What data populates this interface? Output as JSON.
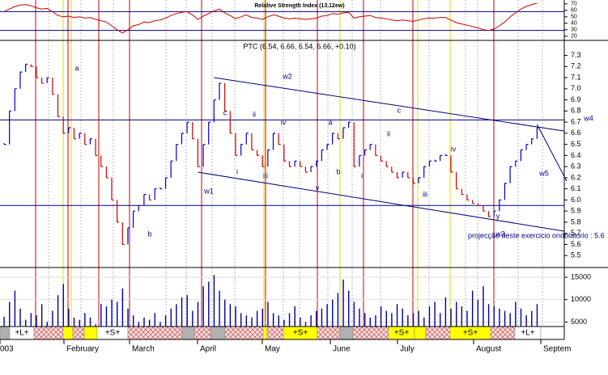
{
  "chart_data": [
    {
      "type": "line",
      "title": "Relative Strength Index (13.12ew)",
      "color": "#cc0000",
      "values": [
        58,
        62,
        66,
        68,
        69,
        67,
        64,
        62,
        63,
        58,
        52,
        50,
        51,
        49,
        50,
        48,
        49,
        46,
        44,
        42,
        36,
        30,
        25,
        30,
        36,
        38,
        42,
        41,
        44,
        45,
        48,
        52,
        55,
        57,
        58,
        53,
        46,
        51,
        55,
        59,
        62,
        56,
        52,
        47,
        50,
        53,
        49,
        48,
        46,
        50,
        53,
        51,
        48,
        47,
        48,
        47,
        46,
        47,
        48,
        51,
        52,
        55,
        54,
        56,
        57,
        48,
        50,
        51,
        52,
        49,
        48,
        47,
        45,
        44,
        45,
        44,
        43,
        45,
        47,
        48,
        48,
        49,
        49,
        45,
        41,
        39,
        37,
        35,
        33,
        30,
        29,
        31,
        36,
        42,
        50,
        56,
        62,
        66,
        69,
        71
      ],
      "ylim": [
        16,
        76
      ],
      "yticks": [
        70,
        60,
        50,
        40,
        30,
        20
      ],
      "hlines": [
        58,
        29
      ],
      "hline_color": "#000080"
    },
    {
      "type": "ohlc",
      "title": "PTC (6.54, 6.66, 6.54, 6.66, +0.10)",
      "up_color": "#0000cc",
      "down_color": "#cc0000",
      "values": [
        6.5,
        6.8,
        7.0,
        7.15,
        7.22,
        7.2,
        7.1,
        7.05,
        7.1,
        6.95,
        6.75,
        6.6,
        6.65,
        6.55,
        6.6,
        6.5,
        6.55,
        6.4,
        6.3,
        6.2,
        6.0,
        5.8,
        5.6,
        5.75,
        5.9,
        5.95,
        6.05,
        6.0,
        6.1,
        6.1,
        6.2,
        6.35,
        6.5,
        6.6,
        6.7,
        6.55,
        6.3,
        6.5,
        6.7,
        6.9,
        7.05,
        6.8,
        6.6,
        6.4,
        6.5,
        6.6,
        6.45,
        6.4,
        6.3,
        6.45,
        6.6,
        6.5,
        6.35,
        6.3,
        6.35,
        6.3,
        6.25,
        6.3,
        6.35,
        6.45,
        6.5,
        6.6,
        6.55,
        6.65,
        6.7,
        6.3,
        6.4,
        6.45,
        6.5,
        6.4,
        6.35,
        6.3,
        6.25,
        6.2,
        6.25,
        6.2,
        6.15,
        6.2,
        6.3,
        6.35,
        6.35,
        6.4,
        6.4,
        6.25,
        6.1,
        6.05,
        6.0,
        5.97,
        5.95,
        5.9,
        5.85,
        5.9,
        6.0,
        6.15,
        6.3,
        6.35,
        6.45,
        6.5,
        6.55,
        6.65
      ],
      "ylim": [
        5.4,
        7.42
      ],
      "yticks": [
        7.3,
        7.2,
        7.1,
        {
          "value": 7,
          "label": "7.0"
        },
        6.9,
        6.8,
        6.7,
        6.6,
        6.5,
        6.4,
        6.3,
        6.2,
        6.1,
        {
          "value": 6,
          "label": "6.0"
        },
        5.9,
        5.8,
        5.7,
        5.6,
        5.5
      ],
      "hlines": [
        6.72,
        5.95
      ],
      "line_color": "#000080",
      "trendlines": [
        {
          "from": [
            39,
            7.1
          ],
          "to": [
            104,
            6.62
          ]
        },
        {
          "from": [
            36,
            6.25
          ],
          "to": [
            104,
            5.72
          ]
        },
        {
          "from": [
            99,
            6.68
          ],
          "to": [
            104.5,
            6.17
          ]
        }
      ],
      "annotations": [
        "a",
        "b",
        "c",
        "w1",
        "w2",
        "i",
        "ii",
        "iii",
        "iv",
        "v",
        "a",
        "b",
        "c",
        "i",
        "ii",
        "iii",
        "iv",
        "y",
        "w3",
        "w4",
        "w5"
      ],
      "note": "projecção deste exercicio ondolatorio : 5.6"
    },
    {
      "type": "bar",
      "color": "#000099",
      "values": [
        6200,
        9500,
        12000,
        8000,
        5500,
        7000,
        6500,
        9000,
        5000,
        7500,
        11000,
        13500,
        8000,
        6000,
        5500,
        7000,
        6000,
        4500,
        9000,
        8500,
        10000,
        9500,
        12500,
        8000,
        6500,
        5000,
        6000,
        5500,
        7000,
        5000,
        6500,
        8000,
        9000,
        10500,
        11000,
        7500,
        9500,
        13000,
        14000,
        15500,
        12000,
        10000,
        9000,
        8500,
        7000,
        6500,
        6000,
        7500,
        8000,
        9500,
        7000,
        6500,
        5500,
        7000,
        8500,
        6000,
        5000,
        6500,
        7500,
        8000,
        9000,
        10000,
        11500,
        14500,
        12000,
        9500,
        8000,
        7000,
        6000,
        6500,
        8500,
        7500,
        7000,
        9000,
        8000,
        6500,
        7000,
        7500,
        6000,
        8500,
        9500,
        7000,
        10500,
        8000,
        9500,
        8500,
        7500,
        12000,
        10000,
        13000,
        9000,
        8500,
        8000,
        7500,
        7000,
        9500,
        8000,
        6500,
        7500,
        9000
      ],
      "ylim": [
        4000,
        17000
      ],
      "yticks": [
        15000,
        10000,
        5000
      ]
    }
  ],
  "timeline": {
    "months": [
      "003",
      "February",
      "March",
      "April",
      "May",
      "June",
      "July",
      "August",
      "Septem"
    ],
    "signals": [
      "+L+",
      "+S+",
      "+S+",
      "+S+",
      "+S+",
      "+L+"
    ]
  }
}
